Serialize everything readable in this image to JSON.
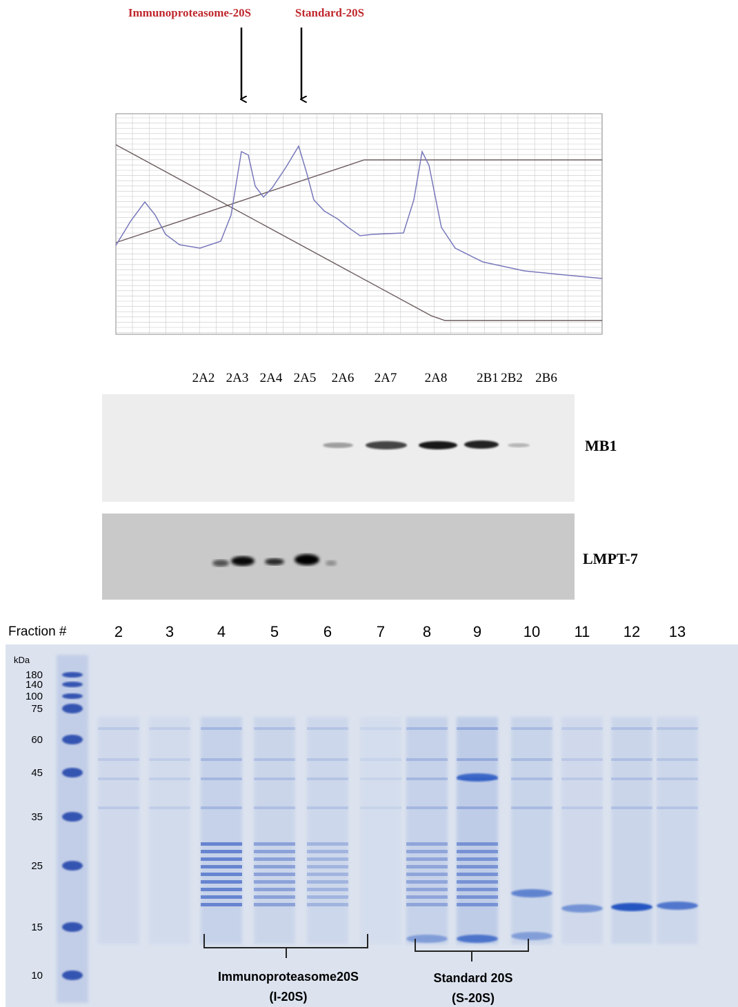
{
  "chromatogram": {
    "arrow_labels": [
      "Immunoproteasome-20S",
      "Standard-20S"
    ]
  },
  "western_blot": {
    "lanes": [
      "2A2",
      "2A3",
      "2A4",
      "2A5",
      "2A6",
      "2A7",
      "2A8",
      "2B1",
      "2B2",
      "2B6"
    ],
    "panels": [
      "MB1",
      "LMPT-7"
    ]
  },
  "gel": {
    "axis_label": "Fraction #",
    "fractions": [
      "2",
      "3",
      "4",
      "5",
      "6",
      "7",
      "8",
      "9",
      "10",
      "11",
      "12",
      "13"
    ],
    "unit": "kDa",
    "markers": [
      "180",
      "140",
      "100",
      "75",
      "60",
      "45",
      "35",
      "25",
      "15",
      "10"
    ],
    "groups": [
      {
        "name": "Immunoproteasome20S",
        "abbr": "(I-20S)"
      },
      {
        "name": "Standard 20S",
        "abbr": "(S-20S)"
      }
    ]
  }
}
